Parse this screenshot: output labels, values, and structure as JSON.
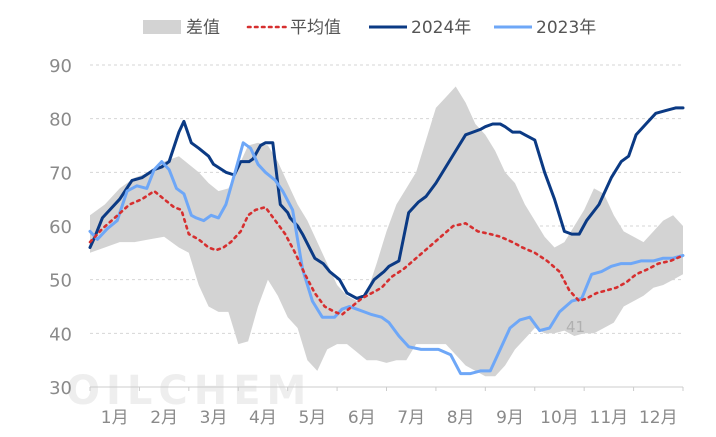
{
  "chart_data": {
    "type": "line",
    "title": "",
    "xlabel": "",
    "ylabel": "",
    "ylim": [
      30,
      90
    ],
    "yticks": [
      30,
      40,
      50,
      60,
      70,
      80,
      90
    ],
    "grid": true,
    "legend_position": "top",
    "x_range": [
      0,
      12
    ],
    "month_labels": [
      "1月",
      "2月",
      "3月",
      "4月",
      "5月",
      "6月",
      "7月",
      "8月",
      "9月",
      "10月",
      "11月",
      "12月"
    ],
    "annotation": "41",
    "watermark": "OILCHEM",
    "legend": {
      "band": "差值",
      "avg": "平均值",
      "y2024": "2024年",
      "y2023": "2023年"
    },
    "colors": {
      "band": "#d3d3d3",
      "avg": "#d62f2f",
      "y2024": "#0b3a84",
      "y2023": "#6ea7f7",
      "grid": "#d6d6d6",
      "axis": "#cccccc"
    },
    "series": [
      {
        "key": "y2024",
        "name": "2024年",
        "x": [
          0,
          0.1,
          0.25,
          0.4,
          0.6,
          0.85,
          1.05,
          1.3,
          1.45,
          1.6,
          1.8,
          1.9,
          2.05,
          2.2,
          2.4,
          2.5,
          2.75,
          2.92,
          3.05,
          3.22,
          3.3,
          3.45,
          3.55,
          3.7,
          3.85,
          4.0,
          4.05,
          4.2,
          4.3,
          4.55,
          4.72,
          4.85,
          5.05,
          5.2,
          5.4,
          5.55,
          5.75,
          5.95,
          6.05,
          6.25,
          6.45,
          6.65,
          6.8,
          7.0,
          7.2,
          7.4,
          7.6,
          7.75,
          7.9,
          8.0,
          8.15,
          8.3,
          8.4,
          8.55,
          8.7,
          8.8,
          9.0,
          9.2,
          9.4,
          9.6,
          9.75,
          9.9,
          10.05,
          10.3,
          10.55,
          10.75,
          10.9,
          11.05,
          11.25,
          11.45,
          11.65,
          11.85,
          12.0
        ],
        "values": [
          56,
          58,
          61.5,
          63,
          65,
          68.5,
          69,
          70.5,
          71,
          72,
          77.5,
          79.5,
          75.5,
          74.5,
          73,
          71.5,
          70,
          69.5,
          72,
          72,
          72.5,
          75,
          75.5,
          75.5,
          64,
          62.5,
          61.5,
          60,
          58.5,
          54,
          53,
          51.5,
          50,
          47.5,
          46.5,
          47,
          50,
          51.5,
          52.5,
          53.5,
          62.5,
          64.5,
          65.5,
          68,
          71,
          74,
          77,
          77.5,
          78,
          78.5,
          79,
          79,
          78.5,
          77.5,
          77.5,
          77,
          76,
          70,
          65,
          59,
          58.5,
          58.5,
          61,
          64,
          69,
          72,
          73,
          77,
          79,
          81,
          81.5,
          82,
          82
        ]
      },
      {
        "key": "y2023",
        "name": "2023年",
        "x": [
          0,
          0.15,
          0.35,
          0.55,
          0.75,
          0.95,
          1.15,
          1.3,
          1.45,
          1.6,
          1.75,
          1.9,
          2.05,
          2.15,
          2.3,
          2.45,
          2.6,
          2.75,
          2.95,
          3.1,
          3.25,
          3.4,
          3.55,
          3.75,
          3.9,
          4.1,
          4.3,
          4.5,
          4.7,
          4.95,
          5.1,
          5.25,
          5.4,
          5.55,
          5.7,
          5.9,
          6.05,
          6.25,
          6.45,
          6.7,
          6.9,
          7.05,
          7.3,
          7.5,
          7.7,
          7.9,
          8.1,
          8.3,
          8.5,
          8.7,
          8.9,
          9.1,
          9.3,
          9.5,
          9.75,
          9.95,
          10.15,
          10.35,
          10.55,
          10.75,
          10.95,
          11.15,
          11.4,
          11.6,
          11.8,
          12.0
        ],
        "values": [
          59,
          57.5,
          59.5,
          61,
          66.5,
          67.5,
          67,
          70.5,
          72,
          70.5,
          67,
          66,
          62,
          61.5,
          61,
          62,
          61.5,
          64,
          70.5,
          75.5,
          74.5,
          71.5,
          70,
          68.5,
          66.5,
          63,
          52,
          46,
          43,
          43,
          44.5,
          45,
          44.5,
          44,
          43.5,
          43,
          42,
          39.5,
          37.5,
          37,
          37,
          37,
          36,
          32.5,
          32.5,
          33,
          33,
          37,
          41,
          42.5,
          43,
          40.5,
          41,
          44,
          46,
          46.5,
          51,
          51.5,
          52.5,
          53,
          53,
          53.5,
          53.5,
          54,
          54,
          54.5
        ]
      },
      {
        "key": "avg",
        "name": "平均值",
        "x": [
          0,
          0.25,
          0.5,
          0.8,
          1.05,
          1.3,
          1.5,
          1.7,
          1.85,
          2.0,
          2.2,
          2.4,
          2.55,
          2.7,
          2.85,
          3.05,
          3.2,
          3.35,
          3.55,
          3.75,
          3.95,
          4.15,
          4.35,
          4.55,
          4.75,
          4.95,
          5.1,
          5.3,
          5.5,
          5.7,
          5.9,
          6.1,
          6.35,
          6.6,
          6.85,
          7.1,
          7.35,
          7.6,
          7.85,
          8.1,
          8.3,
          8.55,
          8.75,
          9.0,
          9.25,
          9.5,
          9.7,
          9.9,
          10.05,
          10.25,
          10.45,
          10.65,
          10.85,
          11.05,
          11.3,
          11.5,
          11.75,
          12.0
        ],
        "values": [
          57,
          59.5,
          61.5,
          64,
          65,
          66.5,
          65,
          63.5,
          63,
          58.5,
          57.5,
          56,
          55.5,
          56,
          57,
          59,
          62,
          63,
          63.5,
          61,
          58.5,
          55,
          51,
          47.5,
          45,
          44,
          43.5,
          45,
          46.5,
          47.5,
          48.5,
          50.5,
          52,
          54,
          56,
          58,
          60,
          60.5,
          59,
          58.5,
          58,
          57,
          56,
          55,
          53.5,
          51.5,
          48,
          46,
          46.5,
          47.5,
          48,
          48.5,
          49.5,
          51,
          52,
          53,
          53.5,
          54.5
        ]
      }
    ],
    "band": {
      "name": "差值",
      "x": [
        0,
        0.3,
        0.6,
        0.9,
        1.2,
        1.5,
        1.8,
        2.0,
        2.2,
        2.4,
        2.6,
        2.8,
        3.0,
        3.2,
        3.4,
        3.6,
        3.8,
        4.0,
        4.2,
        4.4,
        4.6,
        4.8,
        5.0,
        5.2,
        5.4,
        5.6,
        5.8,
        6.0,
        6.2,
        6.4,
        6.6,
        6.8,
        7.0,
        7.2,
        7.4,
        7.6,
        7.8,
        8.0,
        8.2,
        8.4,
        8.6,
        8.8,
        9.0,
        9.2,
        9.4,
        9.6,
        9.8,
        10.0,
        10.2,
        10.4,
        10.6,
        10.8,
        11.0,
        11.2,
        11.4,
        11.6,
        11.8,
        12.0
      ],
      "upper": [
        62,
        64,
        67,
        69,
        70,
        72,
        73,
        71.5,
        70,
        68,
        66.5,
        67,
        71,
        75,
        75.5,
        75,
        72,
        68,
        64,
        61,
        57,
        53,
        49,
        47,
        46,
        47.5,
        53,
        59,
        64,
        67,
        70,
        76,
        82,
        84,
        86,
        83,
        79,
        77,
        74,
        70,
        68,
        64,
        61,
        58,
        56,
        57,
        60,
        63,
        67,
        66,
        62,
        59,
        58,
        57,
        59,
        61,
        62,
        60
      ],
      "lower": [
        55,
        56,
        57,
        57,
        57.5,
        58,
        56,
        55,
        49,
        45,
        44,
        44,
        38,
        38.5,
        45,
        50,
        47,
        43,
        41,
        35,
        33,
        37,
        38,
        38,
        36.5,
        35,
        35,
        34.5,
        35,
        35,
        38,
        38,
        38,
        38,
        36,
        34,
        33,
        32,
        32,
        34,
        37,
        39,
        41,
        40,
        40,
        40.5,
        39.5,
        40,
        40,
        41,
        42,
        45,
        46,
        47,
        48.5,
        49,
        50,
        51
      ]
    }
  }
}
